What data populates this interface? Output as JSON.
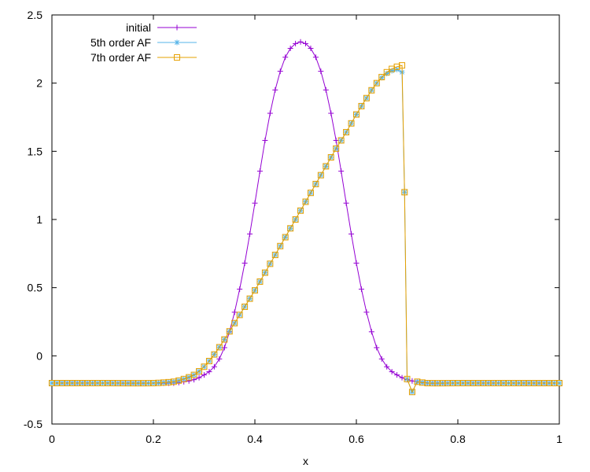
{
  "chart_data": {
    "type": "line",
    "title": "",
    "xlabel": "x",
    "ylabel": "",
    "xlim": [
      0,
      1
    ],
    "ylim": [
      -0.5,
      2.5
    ],
    "xticks": [
      0,
      0.2,
      0.4,
      0.6,
      0.8,
      1
    ],
    "xtick_labels": [
      "0",
      "0.2",
      "0.4",
      "0.6",
      "0.8",
      "1"
    ],
    "yticks": [
      -0.5,
      0,
      0.5,
      1,
      1.5,
      2,
      2.5
    ],
    "ytick_labels": [
      "-0.5",
      "0",
      "0.5",
      "1",
      "1.5",
      "2",
      "2.5"
    ],
    "grid": false,
    "legend_position": "top-left",
    "series": [
      {
        "name": "initial",
        "color": "#9400d3",
        "marker": "plus",
        "x": [
          0.0,
          0.1,
          0.2,
          0.24,
          0.26,
          0.28,
          0.3,
          0.32,
          0.34,
          0.36,
          0.38,
          0.4,
          0.42,
          0.44,
          0.46,
          0.48,
          0.5,
          0.52,
          0.54,
          0.56,
          0.58,
          0.6,
          0.62,
          0.64,
          0.66,
          0.68,
          0.7,
          0.72,
          0.74,
          0.76,
          0.8,
          0.9,
          1.0
        ],
        "y": [
          -0.2,
          -0.2,
          -0.2,
          -0.2,
          -0.19,
          -0.175,
          -0.14,
          -0.08,
          0.06,
          0.32,
          0.68,
          1.12,
          1.58,
          1.95,
          2.19,
          2.29,
          2.29,
          2.19,
          1.95,
          1.58,
          1.12,
          0.68,
          0.32,
          0.06,
          -0.08,
          -0.14,
          -0.175,
          -0.19,
          -0.2,
          -0.2,
          -0.2,
          -0.2,
          -0.2
        ]
      },
      {
        "name": "5th order AF",
        "color": "#56b4e9",
        "marker": "star",
        "x": [
          0.0,
          0.1,
          0.2,
          0.24,
          0.26,
          0.28,
          0.3,
          0.32,
          0.34,
          0.36,
          0.38,
          0.4,
          0.42,
          0.44,
          0.46,
          0.48,
          0.5,
          0.52,
          0.54,
          0.56,
          0.58,
          0.6,
          0.62,
          0.64,
          0.66,
          0.68,
          0.69,
          0.695,
          0.7,
          0.72,
          0.74,
          0.8,
          0.9,
          1.0
        ],
        "y": [
          -0.2,
          -0.2,
          -0.2,
          -0.19,
          -0.17,
          -0.14,
          -0.08,
          0.01,
          0.12,
          0.24,
          0.36,
          0.48,
          0.61,
          0.74,
          0.87,
          1.0,
          1.13,
          1.26,
          1.39,
          1.52,
          1.64,
          1.77,
          1.89,
          2.0,
          2.07,
          2.1,
          2.08,
          1.2,
          -0.17,
          -0.19,
          -0.2,
          -0.2,
          -0.2,
          -0.2
        ]
      },
      {
        "name": "7th order AF",
        "color": "#e6a000",
        "marker": "square",
        "x": [
          0.0,
          0.1,
          0.2,
          0.24,
          0.26,
          0.28,
          0.3,
          0.32,
          0.34,
          0.36,
          0.38,
          0.4,
          0.42,
          0.44,
          0.46,
          0.48,
          0.5,
          0.52,
          0.54,
          0.56,
          0.58,
          0.6,
          0.62,
          0.64,
          0.66,
          0.68,
          0.69,
          0.695,
          0.7,
          0.72,
          0.74,
          0.8,
          0.9,
          1.0
        ],
        "y": [
          -0.2,
          -0.2,
          -0.2,
          -0.19,
          -0.17,
          -0.14,
          -0.08,
          0.01,
          0.12,
          0.24,
          0.36,
          0.48,
          0.61,
          0.74,
          0.87,
          1.0,
          1.13,
          1.26,
          1.39,
          1.52,
          1.64,
          1.77,
          1.89,
          2.0,
          2.08,
          2.12,
          2.13,
          1.2,
          -0.17,
          -0.19,
          -0.2,
          -0.2,
          -0.2,
          -0.2
        ]
      }
    ]
  }
}
